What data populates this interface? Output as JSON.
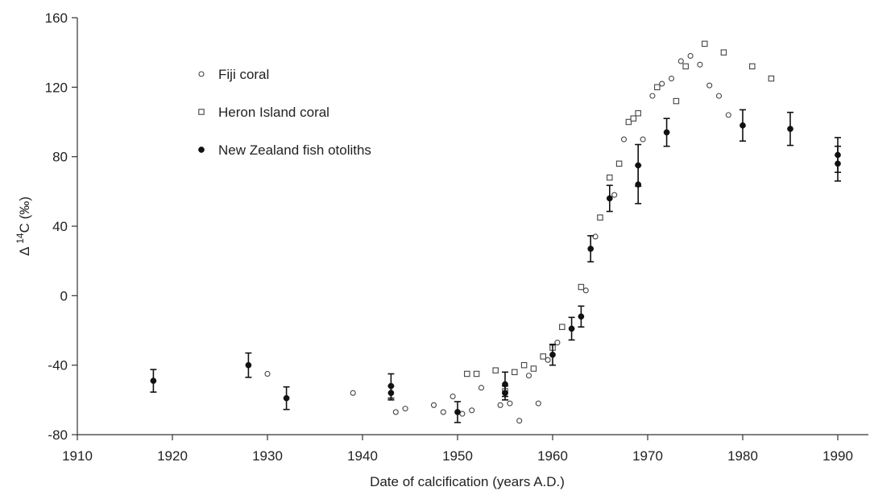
{
  "chart_data": {
    "type": "scatter",
    "title": "",
    "xlabel": "Date of calcification (years A.D.)",
    "ylabel_main": "Δ ",
    "ylabel_sup": "14",
    "ylabel_rest": "C (‰)",
    "xlim": [
      1910,
      1995
    ],
    "ylim": [
      -80,
      160
    ],
    "xticks": [
      1910,
      1920,
      1930,
      1940,
      1950,
      1960,
      1970,
      1980,
      1990
    ],
    "yticks": [
      -80,
      -40,
      0,
      40,
      80,
      120,
      160
    ],
    "legend_position": "upper-left",
    "series": [
      {
        "name": "Fiji coral",
        "marker": "open-circle",
        "points": [
          [
            1930,
            -45
          ],
          [
            1939,
            -56
          ],
          [
            1943.5,
            -67
          ],
          [
            1944.5,
            -65
          ],
          [
            1947.5,
            -63
          ],
          [
            1948.5,
            -67
          ],
          [
            1949.5,
            -58
          ],
          [
            1950.5,
            -68
          ],
          [
            1951.5,
            -66
          ],
          [
            1952.5,
            -53
          ],
          [
            1954.5,
            -63
          ],
          [
            1955.5,
            -62
          ],
          [
            1956.5,
            -72
          ],
          [
            1957.5,
            -46
          ],
          [
            1958.5,
            -62
          ],
          [
            1959.5,
            -37
          ],
          [
            1960.5,
            -27
          ],
          [
            1963.5,
            3
          ],
          [
            1964.5,
            34
          ],
          [
            1966.5,
            58
          ],
          [
            1967.5,
            90
          ],
          [
            1969.5,
            90
          ],
          [
            1970.5,
            115
          ],
          [
            1971.5,
            122
          ],
          [
            1972.5,
            125
          ],
          [
            1973.5,
            135
          ],
          [
            1974.5,
            138
          ],
          [
            1975.5,
            133
          ],
          [
            1976.5,
            121
          ],
          [
            1977.5,
            115
          ],
          [
            1978.5,
            104
          ]
        ]
      },
      {
        "name": "Heron Island coral",
        "marker": "open-square",
        "points": [
          [
            1951,
            -45
          ],
          [
            1952,
            -45
          ],
          [
            1954,
            -43
          ],
          [
            1955,
            -55
          ],
          [
            1956,
            -44
          ],
          [
            1957,
            -40
          ],
          [
            1958,
            -42
          ],
          [
            1959,
            -35
          ],
          [
            1960,
            -30
          ],
          [
            1961,
            -18
          ],
          [
            1963,
            5
          ],
          [
            1965,
            45
          ],
          [
            1966,
            68
          ],
          [
            1967,
            76
          ],
          [
            1968,
            100
          ],
          [
            1968.5,
            102
          ],
          [
            1969,
            105
          ],
          [
            1971,
            120
          ],
          [
            1973,
            112
          ],
          [
            1974,
            132
          ],
          [
            1976,
            145
          ],
          [
            1978,
            140
          ],
          [
            1981,
            132
          ],
          [
            1983,
            125
          ]
        ]
      },
      {
        "name": "New Zealand fish otoliths",
        "marker": "filled-circle-errorbar",
        "points": [
          [
            1918,
            -49,
            6.5
          ],
          [
            1928,
            -40,
            7
          ],
          [
            1932,
            -59,
            6.5
          ],
          [
            1943,
            -52,
            7
          ],
          [
            1943,
            -56,
            4
          ],
          [
            1950,
            -67,
            6
          ],
          [
            1955,
            -51,
            7
          ],
          [
            1955,
            -56,
            4
          ],
          [
            1960,
            -34,
            6
          ],
          [
            1962,
            -19,
            6.5
          ],
          [
            1963,
            -12,
            6
          ],
          [
            1964,
            27,
            7.5
          ],
          [
            1966,
            56,
            7.5
          ],
          [
            1969,
            75,
            12
          ],
          [
            1969,
            64,
            11
          ],
          [
            1972,
            94,
            8
          ],
          [
            1980,
            98,
            9
          ],
          [
            1985,
            96,
            9.5
          ],
          [
            1990,
            81,
            10
          ],
          [
            1990,
            76,
            10
          ]
        ]
      }
    ]
  }
}
